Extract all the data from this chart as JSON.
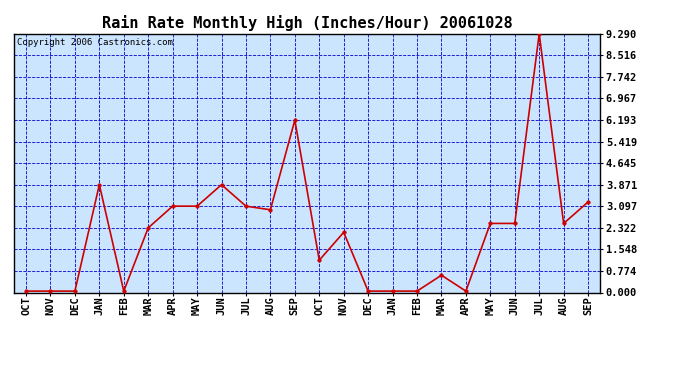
{
  "title": "Rain Rate Monthly High (Inches/Hour) 20061028",
  "copyright": "Copyright 2006 Castronics.com",
  "x_labels": [
    "OCT",
    "NOV",
    "DEC",
    "JAN",
    "FEB",
    "MAR",
    "APR",
    "MAY",
    "JUN",
    "JUL",
    "AUG",
    "SEP",
    "OCT",
    "NOV",
    "DEC",
    "JAN",
    "FEB",
    "MAR",
    "APR",
    "MAY",
    "JUN",
    "JUL",
    "AUG",
    "SEP"
  ],
  "y_values": [
    0.05,
    0.05,
    0.05,
    3.87,
    0.05,
    2.32,
    3.1,
    3.1,
    3.87,
    3.1,
    2.97,
    6.19,
    1.16,
    2.16,
    0.05,
    0.05,
    0.05,
    0.62,
    0.05,
    2.48,
    2.48,
    9.29,
    2.48,
    3.25
  ],
  "y_ticks": [
    0.0,
    0.774,
    1.548,
    2.322,
    3.097,
    3.871,
    4.645,
    5.419,
    6.193,
    6.967,
    7.742,
    8.516,
    9.29
  ],
  "y_min": 0.0,
  "y_max": 9.29,
  "line_color": "#cc0000",
  "marker_color": "#cc0000",
  "fig_bg_color": "#ffffff",
  "plot_bg_color": "#cce5ff",
  "grid_color": "#0000cc",
  "border_color": "#000000",
  "title_color": "#000000",
  "copyright_color": "#000000",
  "title_fontsize": 11,
  "tick_fontsize": 7.5,
  "copyright_fontsize": 6.5,
  "ytick_fontweight": "bold"
}
